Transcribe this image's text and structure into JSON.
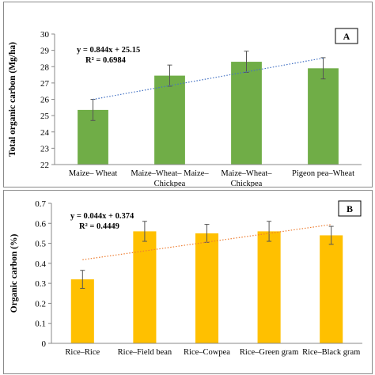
{
  "chart_data": [
    {
      "type": "bar",
      "panel_label": "A",
      "categories": [
        "Maize– Wheat",
        "Maize–Wheat– Maize–Chickpea",
        "Maize–Wheat–Chickpea",
        "Pigeon pea–Wheat"
      ],
      "category_lines": [
        [
          "Maize– Wheat"
        ],
        [
          "Maize–Wheat– Maize–",
          "Chickpea"
        ],
        [
          "Maize–Wheat–",
          "Chickpea"
        ],
        [
          "Pigeon pea–Wheat"
        ]
      ],
      "values": [
        25.35,
        27.45,
        28.3,
        27.9
      ],
      "errors": [
        0.65,
        0.65,
        0.65,
        0.65
      ],
      "ylabel": "Total organic carbon (Mg/ha)",
      "xlabel": "",
      "ylim": [
        22,
        30
      ],
      "yticks": [
        22,
        23,
        24,
        25,
        26,
        27,
        28,
        29,
        30
      ],
      "trendline": {
        "equation": "y = 0.844x + 25.15",
        "r2": "R² = 0.6984",
        "slope": 0.844,
        "intercept": 25.15,
        "color": "#4472c4"
      },
      "bar_color": "#70ad47",
      "grid": false,
      "legend": "none"
    },
    {
      "type": "bar",
      "panel_label": "B",
      "categories": [
        "Rice–Rice",
        "Rice–Field bean",
        "Rice–Cowpea",
        "Rice–Green gram",
        "Rice–Black gram"
      ],
      "category_lines": [
        [
          "Rice–Rice"
        ],
        [
          "Rice–Field bean"
        ],
        [
          "Rice–Cowpea"
        ],
        [
          "Rice–Green gram"
        ],
        [
          "Rice–Black gram"
        ]
      ],
      "values": [
        0.32,
        0.56,
        0.55,
        0.56,
        0.54
      ],
      "errors": [
        0.045,
        0.05,
        0.045,
        0.05,
        0.045
      ],
      "ylabel": "Organic carbon (%)",
      "xlabel": "",
      "ylim": [
        0,
        0.7
      ],
      "yticks": [
        0,
        0.1,
        0.2,
        0.3,
        0.4,
        0.5,
        0.6,
        0.7
      ],
      "trendline": {
        "equation": "y = 0.044x + 0.374",
        "r2": "R² = 0.4449",
        "slope": 0.044,
        "intercept": 0.374,
        "color": "#ed7d31"
      },
      "bar_color": "#ffc000",
      "grid": false,
      "legend": "none"
    }
  ]
}
